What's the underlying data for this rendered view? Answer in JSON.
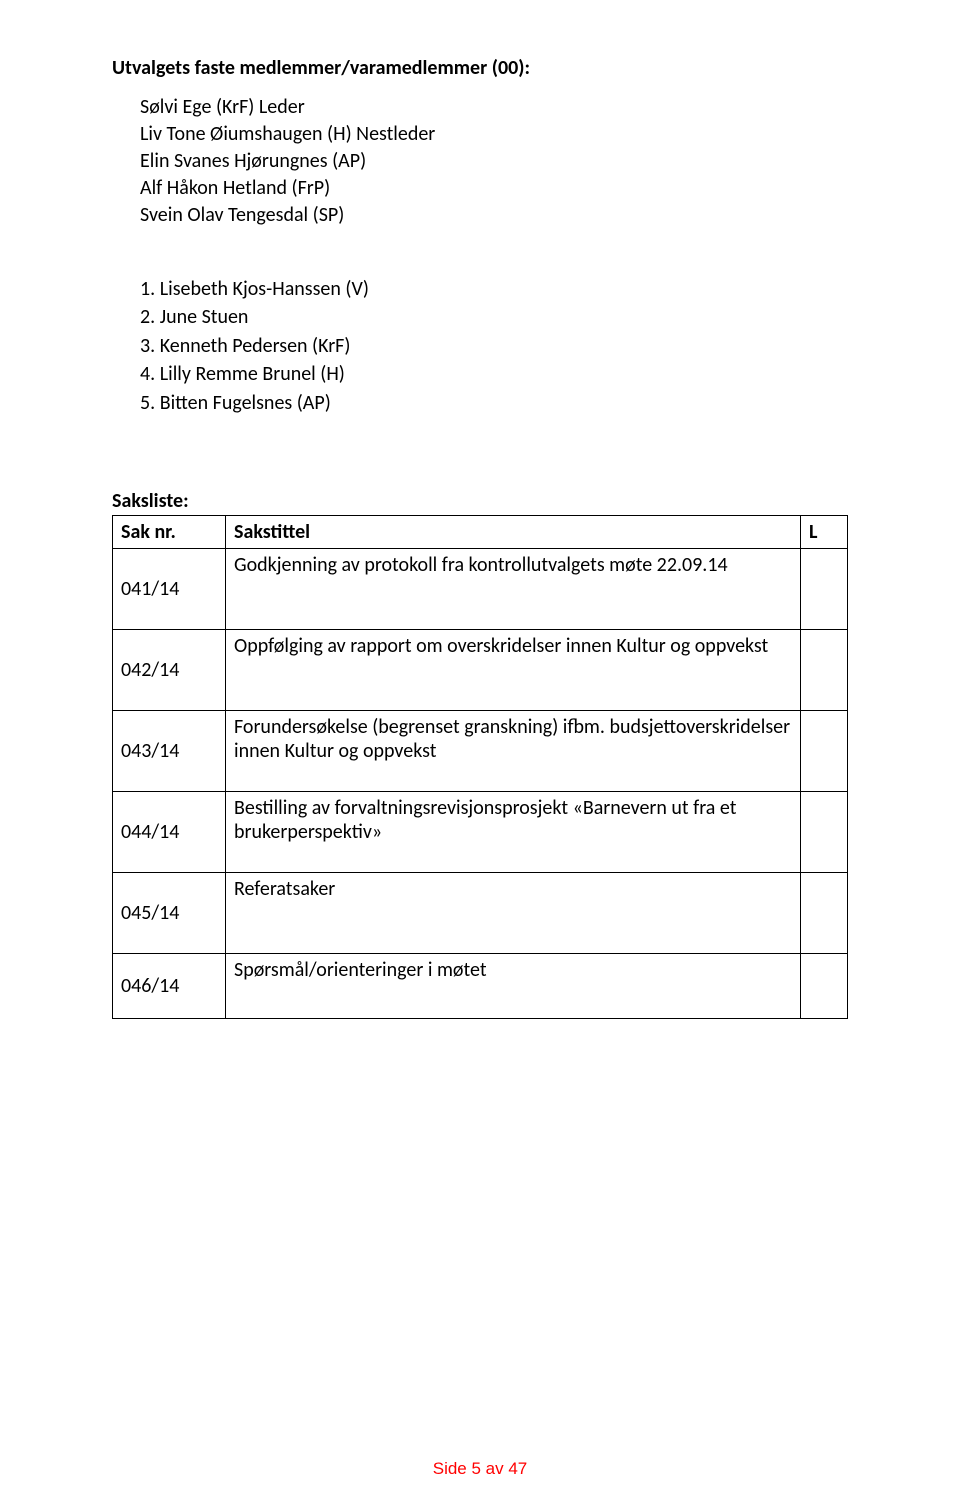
{
  "heading": "Utvalgets faste medlemmer/varamedlemmer (00):",
  "members": [
    "Sølvi Ege  (KrF)   Leder",
    "Liv Tone Øiumshaugen (H) Nestleder",
    "Elin Svanes Hjørungnes  (AP)",
    "Alf Håkon Hetland  (FrP)",
    "Svein Olav Tengesdal   (SP)"
  ],
  "vara": [
    "1. Lisebeth Kjos-Hanssen (V)",
    "2. June Stuen",
    "3. Kenneth Pedersen  (KrF)",
    "4. Lilly Remme Brunel  (H)",
    "5. Bitten Fugelsnes  (AP)"
  ],
  "sakslisteLabel": "Saksliste:",
  "tableHeaders": {
    "saknr": "Sak nr.",
    "sakstittel": "Sakstittel",
    "l": "L"
  },
  "rows": [
    {
      "nr": "041/14",
      "tittel": "Godkjenning av protokoll fra kontrollutvalgets møte 22.09.14",
      "lines": 1
    },
    {
      "nr": "042/14",
      "tittel": "Oppfølging av rapport om overskridelser innen Kultur og oppvekst",
      "lines": 1
    },
    {
      "nr": "043/14",
      "tittel": "Forundersøkelse (begrenset granskning) ifbm. budsjettoverskridelser innen Kultur og oppvekst",
      "lines": 2
    },
    {
      "nr": "044/14",
      "tittel": "Bestilling av forvaltningsrevisjonsprosjekt «Barnevern ut fra et brukerperspektiv»",
      "lines": 2
    },
    {
      "nr": "045/14",
      "tittel": "Referatsaker",
      "lines": 1
    },
    {
      "nr": "046/14",
      "tittel": "Spørsmål/orienteringer i møtet",
      "lines": 1
    }
  ],
  "footer": "Side 5 av 47",
  "colors": {
    "text": "#000000",
    "border": "#000000",
    "footer": "#ff0000",
    "background": "#ffffff"
  },
  "typography": {
    "body_fontsize_pt": 15,
    "footer_fontsize_pt": 13,
    "body_font": "Calibri",
    "footer_font": "Arial"
  }
}
